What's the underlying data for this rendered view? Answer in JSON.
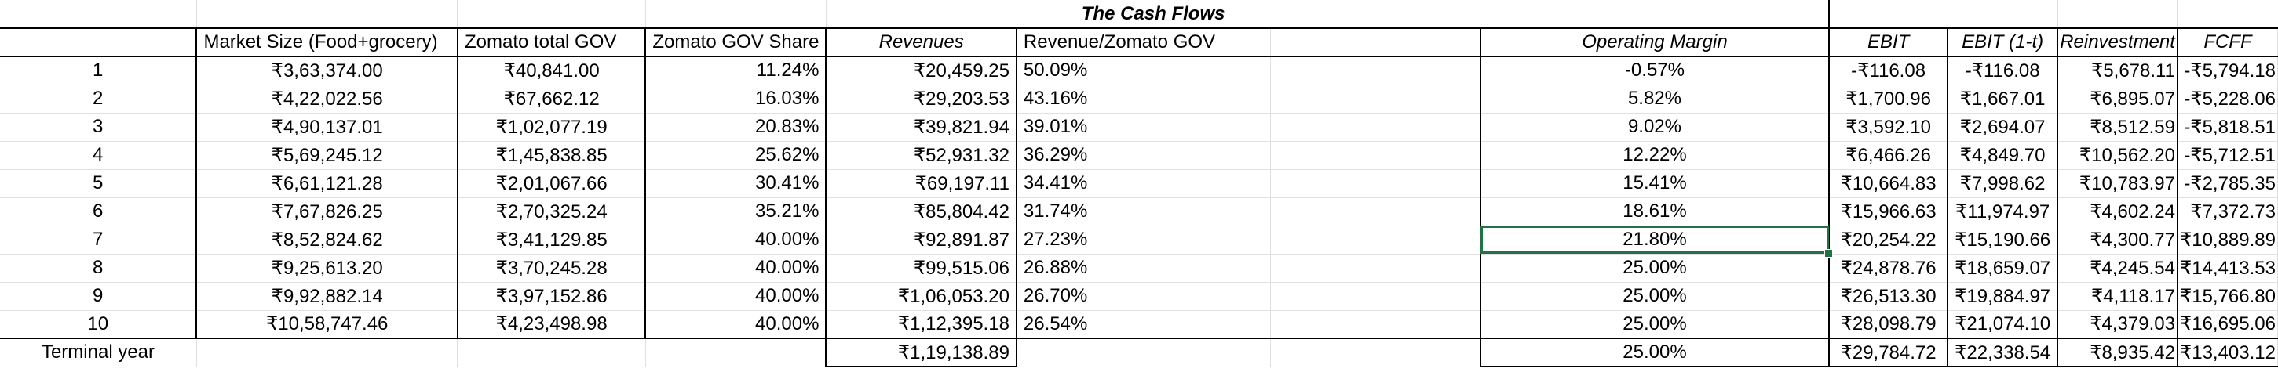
{
  "title": "The Cash Flows",
  "headers": {
    "market_size": "Market Size (Food+grocery)",
    "zomato_gov": "Zomato total GOV",
    "gov_share": "Zomato GOV Share",
    "revenues": "Revenues",
    "rev_gov": "Revenue/Zomato GOV",
    "operating_margin": "Operating Margin",
    "ebit": "EBIT",
    "ebit_1t": "EBIT (1-t)",
    "reinvestment": "Reinvestment",
    "fcff": "FCFF"
  },
  "rows": [
    {
      "year": "1",
      "market_size": "₹3,63,374.00",
      "zomato_gov": "₹40,841.00",
      "gov_share": "11.24%",
      "revenues": "₹20,459.25",
      "rev_gov": "50.09%",
      "operating_margin": "-0.57%",
      "ebit": "-₹116.08",
      "ebit_1t": "-₹116.08",
      "reinvestment": "₹5,678.11",
      "fcff": "-₹5,794.18"
    },
    {
      "year": "2",
      "market_size": "₹4,22,022.56",
      "zomato_gov": "₹67,662.12",
      "gov_share": "16.03%",
      "revenues": "₹29,203.53",
      "rev_gov": "43.16%",
      "operating_margin": "5.82%",
      "ebit": "₹1,700.96",
      "ebit_1t": "₹1,667.01",
      "reinvestment": "₹6,895.07",
      "fcff": "-₹5,228.06"
    },
    {
      "year": "3",
      "market_size": "₹4,90,137.01",
      "zomato_gov": "₹1,02,077.19",
      "gov_share": "20.83%",
      "revenues": "₹39,821.94",
      "rev_gov": "39.01%",
      "operating_margin": "9.02%",
      "ebit": "₹3,592.10",
      "ebit_1t": "₹2,694.07",
      "reinvestment": "₹8,512.59",
      "fcff": "-₹5,818.51"
    },
    {
      "year": "4",
      "market_size": "₹5,69,245.12",
      "zomato_gov": "₹1,45,838.85",
      "gov_share": "25.62%",
      "revenues": "₹52,931.32",
      "rev_gov": "36.29%",
      "operating_margin": "12.22%",
      "ebit": "₹6,466.26",
      "ebit_1t": "₹4,849.70",
      "reinvestment": "₹10,562.20",
      "fcff": "-₹5,712.51"
    },
    {
      "year": "5",
      "market_size": "₹6,61,121.28",
      "zomato_gov": "₹2,01,067.66",
      "gov_share": "30.41%",
      "revenues": "₹69,197.11",
      "rev_gov": "34.41%",
      "operating_margin": "15.41%",
      "ebit": "₹10,664.83",
      "ebit_1t": "₹7,998.62",
      "reinvestment": "₹10,783.97",
      "fcff": "-₹2,785.35"
    },
    {
      "year": "6",
      "market_size": "₹7,67,826.25",
      "zomato_gov": "₹2,70,325.24",
      "gov_share": "35.21%",
      "revenues": "₹85,804.42",
      "rev_gov": "31.74%",
      "operating_margin": "18.61%",
      "ebit": "₹15,966.63",
      "ebit_1t": "₹11,974.97",
      "reinvestment": "₹4,602.24",
      "fcff": "₹7,372.73"
    },
    {
      "year": "7",
      "market_size": "₹8,52,824.62",
      "zomato_gov": "₹3,41,129.85",
      "gov_share": "40.00%",
      "revenues": "₹92,891.87",
      "rev_gov": "27.23%",
      "operating_margin": "21.80%",
      "ebit": "₹20,254.22",
      "ebit_1t": "₹15,190.66",
      "reinvestment": "₹4,300.77",
      "fcff": "₹10,889.89"
    },
    {
      "year": "8",
      "market_size": "₹9,25,613.20",
      "zomato_gov": "₹3,70,245.28",
      "gov_share": "40.00%",
      "revenues": "₹99,515.06",
      "rev_gov": "26.88%",
      "operating_margin": "25.00%",
      "ebit": "₹24,878.76",
      "ebit_1t": "₹18,659.07",
      "reinvestment": "₹4,245.54",
      "fcff": "₹14,413.53"
    },
    {
      "year": "9",
      "market_size": "₹9,92,882.14",
      "zomato_gov": "₹3,97,152.86",
      "gov_share": "40.00%",
      "revenues": "₹1,06,053.20",
      "rev_gov": "26.70%",
      "operating_margin": "25.00%",
      "ebit": "₹26,513.30",
      "ebit_1t": "₹19,884.97",
      "reinvestment": "₹4,118.17",
      "fcff": "₹15,766.80"
    },
    {
      "year": "10",
      "market_size": "₹10,58,747.46",
      "zomato_gov": "₹4,23,498.98",
      "gov_share": "40.00%",
      "revenues": "₹1,12,395.18",
      "rev_gov": "26.54%",
      "operating_margin": "25.00%",
      "ebit": "₹28,098.79",
      "ebit_1t": "₹21,074.10",
      "reinvestment": "₹4,379.03",
      "fcff": "₹16,695.06"
    }
  ],
  "terminal": {
    "year": "Terminal year",
    "revenues": "₹1,19,138.89",
    "operating_margin": "25.00%",
    "ebit": "₹29,784.72",
    "ebit_1t": "₹22,338.54",
    "reinvestment": "₹8,935.42",
    "fcff": "₹13,403.12"
  },
  "selected_cell_color": "#217346"
}
